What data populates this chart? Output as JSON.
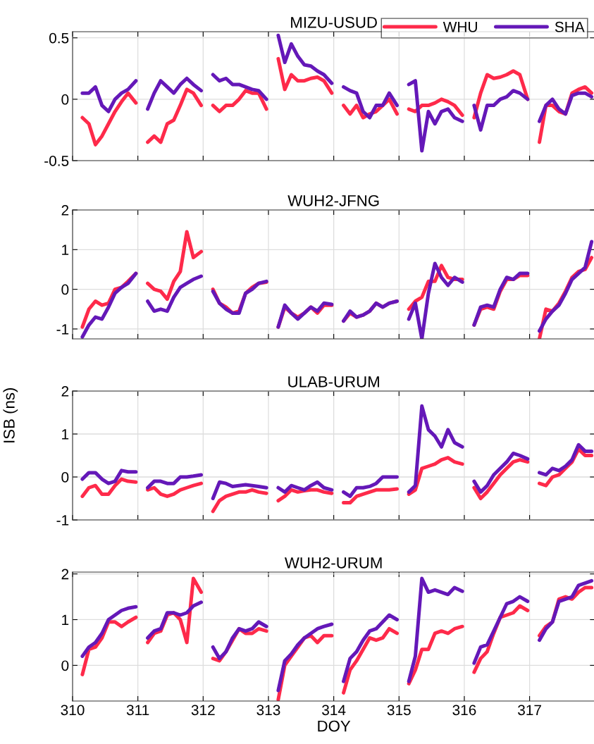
{
  "chart_data": [
    {
      "type": "line",
      "title": "MIZU-USUD",
      "legend": "top right",
      "grid": true,
      "tick_labels": "y",
      "xlim": [
        310,
        318
      ],
      "xticks": [
        310,
        311,
        312,
        313,
        314,
        315,
        316,
        317
      ],
      "ylim": [
        -0.5,
        0.55
      ],
      "yticks": [
        -0.5,
        0,
        0.5
      ],
      "x": [
        310.15,
        310.25,
        310.35,
        310.45,
        310.55,
        310.65,
        310.75,
        310.85,
        310.97,
        311.06,
        311.15,
        311.25,
        311.35,
        311.45,
        311.55,
        311.65,
        311.75,
        311.85,
        311.97,
        312.06,
        312.15,
        312.25,
        312.35,
        312.45,
        312.55,
        312.65,
        312.75,
        312.85,
        312.97,
        313.06,
        313.15,
        313.25,
        313.35,
        313.45,
        313.55,
        313.65,
        313.75,
        313.85,
        313.97,
        314.06,
        314.15,
        314.25,
        314.35,
        314.45,
        314.55,
        314.65,
        314.75,
        314.85,
        314.97,
        315.06,
        315.15,
        315.25,
        315.35,
        315.45,
        315.55,
        315.65,
        315.75,
        315.85,
        315.97,
        316.06,
        316.15,
        316.25,
        316.35,
        316.45,
        316.55,
        316.65,
        316.75,
        316.85,
        316.97,
        317.06,
        317.15,
        317.25,
        317.35,
        317.45,
        317.55,
        317.65,
        317.75,
        317.85,
        317.95
      ],
      "series": [
        {
          "name": "WHU",
          "color": "#fe2a4a",
          "values": [
            -0.15,
            -0.2,
            -0.37,
            -0.3,
            -0.2,
            -0.1,
            -0.02,
            0.05,
            -0.03,
            null,
            -0.35,
            -0.3,
            -0.35,
            -0.2,
            -0.17,
            -0.05,
            0.08,
            0.05,
            -0.05,
            null,
            -0.05,
            -0.1,
            -0.05,
            -0.05,
            0.0,
            0.07,
            0.05,
            0.05,
            -0.08,
            null,
            0.33,
            0.08,
            0.2,
            0.15,
            0.15,
            0.17,
            0.18,
            0.15,
            0.05,
            null,
            -0.05,
            -0.12,
            -0.05,
            -0.15,
            -0.12,
            -0.1,
            -0.05,
            0.0,
            -0.12,
            null,
            -0.08,
            -0.1,
            -0.05,
            -0.05,
            -0.03,
            0.0,
            -0.02,
            -0.05,
            -0.13,
            null,
            -0.15,
            0.05,
            0.2,
            0.17,
            0.18,
            0.2,
            0.23,
            0.2,
            0.0,
            null,
            -0.35,
            -0.05,
            -0.05,
            -0.1,
            -0.12,
            0.05,
            0.08,
            0.1,
            0.05
          ]
        },
        {
          "name": "SHA",
          "color": "#6418b8",
          "values": [
            0.05,
            0.05,
            0.1,
            -0.05,
            -0.1,
            0.0,
            0.05,
            0.08,
            0.15,
            null,
            -0.08,
            0.05,
            0.15,
            0.1,
            0.05,
            0.12,
            0.17,
            0.12,
            0.07,
            null,
            0.2,
            0.15,
            0.17,
            0.12,
            0.12,
            0.1,
            0.08,
            0.07,
            0.0,
            null,
            0.52,
            0.3,
            0.45,
            0.35,
            0.28,
            0.27,
            0.23,
            0.2,
            0.13,
            null,
            0.1,
            0.07,
            0.05,
            -0.1,
            -0.15,
            -0.05,
            -0.05,
            0.05,
            -0.05,
            null,
            0.12,
            0.15,
            -0.42,
            -0.1,
            -0.2,
            -0.1,
            -0.08,
            -0.15,
            -0.18,
            null,
            -0.05,
            -0.25,
            -0.05,
            -0.05,
            0.0,
            0.02,
            0.07,
            0.05,
            0.0,
            null,
            -0.18,
            -0.05,
            0.0,
            -0.08,
            -0.12,
            0.03,
            0.05,
            0.05,
            0.02
          ]
        }
      ]
    },
    {
      "type": "line",
      "title": "WUH2-JFNG",
      "grid": true,
      "tick_labels": "y",
      "xlim": [
        310,
        318
      ],
      "xticks": [
        310,
        311,
        312,
        313,
        314,
        315,
        316,
        317
      ],
      "ylim": [
        -1.25,
        2
      ],
      "yticks": [
        -1,
        0,
        1,
        2
      ],
      "x": [
        310.15,
        310.25,
        310.35,
        310.45,
        310.55,
        310.65,
        310.75,
        310.85,
        310.97,
        311.06,
        311.15,
        311.25,
        311.35,
        311.45,
        311.55,
        311.65,
        311.75,
        311.85,
        311.97,
        312.06,
        312.15,
        312.25,
        312.35,
        312.45,
        312.55,
        312.65,
        312.75,
        312.85,
        312.97,
        313.06,
        313.15,
        313.25,
        313.35,
        313.45,
        313.55,
        313.65,
        313.75,
        313.85,
        313.97,
        314.06,
        314.15,
        314.25,
        314.35,
        314.45,
        314.55,
        314.65,
        314.75,
        314.85,
        314.97,
        315.06,
        315.15,
        315.25,
        315.35,
        315.45,
        315.55,
        315.65,
        315.75,
        315.85,
        315.97,
        316.06,
        316.15,
        316.25,
        316.35,
        316.45,
        316.55,
        316.65,
        316.75,
        316.85,
        316.97,
        317.06,
        317.15,
        317.25,
        317.35,
        317.45,
        317.55,
        317.65,
        317.75,
        317.85,
        317.95
      ],
      "series": [
        {
          "color": "#fe2a4a",
          "values": [
            -0.95,
            -0.5,
            -0.3,
            -0.4,
            -0.35,
            0.0,
            0.05,
            0.2,
            0.4,
            null,
            0.15,
            0.0,
            -0.05,
            -0.25,
            0.2,
            0.45,
            1.45,
            0.8,
            0.95,
            null,
            0.0,
            -0.35,
            -0.45,
            -0.6,
            -0.55,
            -0.1,
            0.05,
            0.15,
            0.18,
            null,
            -0.95,
            -0.45,
            -0.6,
            -0.7,
            -0.6,
            -0.45,
            -0.6,
            -0.4,
            -0.4,
            null,
            -0.8,
            -0.6,
            -0.7,
            -0.65,
            -0.55,
            -0.35,
            -0.45,
            -0.35,
            -0.3,
            null,
            -0.5,
            -0.3,
            -0.2,
            0.2,
            0.2,
            0.6,
            0.3,
            0.25,
            0.25,
            null,
            -0.9,
            -0.5,
            -0.45,
            -0.5,
            -0.05,
            0.25,
            0.25,
            0.35,
            0.35,
            null,
            -1.25,
            -0.5,
            -0.55,
            -0.35,
            -0.05,
            0.3,
            0.45,
            0.5,
            0.8
          ]
        },
        {
          "color": "#6418b8",
          "values": [
            -1.2,
            -0.9,
            -0.7,
            -0.75,
            -0.45,
            -0.1,
            0.05,
            0.15,
            0.4,
            null,
            -0.3,
            -0.55,
            -0.5,
            -0.55,
            -0.2,
            0.05,
            0.15,
            0.25,
            0.33,
            null,
            -0.05,
            -0.35,
            -0.5,
            -0.6,
            -0.6,
            -0.1,
            0.0,
            0.15,
            0.2,
            null,
            -0.95,
            -0.4,
            -0.6,
            -0.75,
            -0.6,
            -0.45,
            -0.55,
            -0.35,
            -0.38,
            null,
            -0.8,
            -0.55,
            -0.7,
            -0.65,
            -0.55,
            -0.35,
            -0.45,
            -0.35,
            -0.3,
            null,
            -0.75,
            -0.35,
            -1.25,
            -0.1,
            0.65,
            0.3,
            0.1,
            0.3,
            0.18,
            null,
            -0.9,
            -0.45,
            -0.4,
            -0.45,
            0.0,
            0.3,
            0.25,
            0.4,
            0.4,
            null,
            -1.05,
            -0.75,
            -0.55,
            -0.4,
            -0.1,
            0.25,
            0.4,
            0.55,
            1.2
          ]
        }
      ]
    },
    {
      "type": "line",
      "title": "ULAB-URUM",
      "ylabel": "ISB (ns)",
      "grid": true,
      "tick_labels": "y",
      "xlim": [
        310,
        318
      ],
      "xticks": [
        310,
        311,
        312,
        313,
        314,
        315,
        316,
        317
      ],
      "ylim": [
        -1,
        2
      ],
      "yticks": [
        -1,
        0,
        1,
        2
      ],
      "x": [
        310.15,
        310.25,
        310.35,
        310.45,
        310.55,
        310.65,
        310.75,
        310.85,
        310.97,
        311.06,
        311.15,
        311.25,
        311.35,
        311.45,
        311.55,
        311.65,
        311.75,
        311.85,
        311.97,
        312.06,
        312.15,
        312.25,
        312.35,
        312.45,
        312.55,
        312.65,
        312.75,
        312.85,
        312.97,
        313.06,
        313.15,
        313.25,
        313.35,
        313.45,
        313.55,
        313.65,
        313.75,
        313.85,
        313.97,
        314.06,
        314.15,
        314.25,
        314.35,
        314.45,
        314.55,
        314.65,
        314.75,
        314.85,
        314.97,
        315.06,
        315.15,
        315.25,
        315.35,
        315.45,
        315.55,
        315.65,
        315.75,
        315.85,
        315.97,
        316.06,
        316.15,
        316.25,
        316.35,
        316.45,
        316.55,
        316.65,
        316.75,
        316.85,
        316.97,
        317.06,
        317.15,
        317.25,
        317.35,
        317.45,
        317.55,
        317.65,
        317.75,
        317.85,
        317.95
      ],
      "series": [
        {
          "color": "#fe2a4a",
          "values": [
            -0.45,
            -0.25,
            -0.2,
            -0.4,
            -0.4,
            -0.2,
            -0.05,
            -0.1,
            -0.12,
            null,
            -0.3,
            -0.25,
            -0.4,
            -0.45,
            -0.4,
            -0.3,
            -0.25,
            -0.2,
            -0.15,
            null,
            -0.8,
            -0.55,
            -0.45,
            -0.4,
            -0.35,
            -0.35,
            -0.3,
            -0.35,
            -0.38,
            null,
            -0.55,
            -0.45,
            -0.3,
            -0.35,
            -0.32,
            -0.3,
            -0.3,
            -0.35,
            -0.38,
            null,
            -0.6,
            -0.6,
            -0.45,
            -0.4,
            -0.35,
            -0.3,
            -0.3,
            -0.3,
            -0.28,
            null,
            -0.4,
            -0.3,
            0.2,
            0.25,
            0.3,
            0.4,
            0.45,
            0.35,
            0.3,
            null,
            -0.25,
            -0.5,
            -0.35,
            -0.15,
            0.05,
            0.2,
            0.35,
            0.4,
            0.35,
            null,
            -0.15,
            -0.2,
            0.0,
            0.05,
            0.2,
            0.35,
            0.65,
            0.5,
            0.5
          ]
        },
        {
          "color": "#6418b8",
          "values": [
            -0.05,
            0.1,
            0.1,
            -0.05,
            -0.15,
            -0.1,
            0.15,
            0.12,
            0.12,
            null,
            -0.25,
            -0.1,
            -0.1,
            -0.15,
            -0.15,
            0.0,
            0.0,
            0.02,
            0.05,
            null,
            -0.5,
            -0.12,
            -0.15,
            -0.22,
            -0.2,
            -0.18,
            -0.2,
            -0.22,
            -0.25,
            null,
            -0.25,
            -0.35,
            -0.2,
            -0.25,
            -0.3,
            -0.2,
            -0.12,
            -0.25,
            -0.3,
            null,
            -0.35,
            -0.45,
            -0.25,
            -0.25,
            -0.22,
            -0.15,
            0.0,
            0.0,
            0.0,
            null,
            -0.35,
            -0.2,
            1.65,
            1.1,
            0.95,
            0.7,
            1.1,
            0.8,
            0.7,
            null,
            -0.1,
            -0.35,
            -0.2,
            0.05,
            0.2,
            0.35,
            0.55,
            0.5,
            0.42,
            null,
            0.1,
            0.05,
            0.2,
            0.15,
            0.25,
            0.4,
            0.75,
            0.6,
            0.6
          ]
        }
      ]
    },
    {
      "type": "line",
      "title": "WUH2-URUM",
      "xlabel": "DOY",
      "grid": true,
      "xlim": [
        310,
        318
      ],
      "xticks": [
        310,
        311,
        312,
        313,
        314,
        315,
        316,
        317
      ],
      "ylim": [
        -0.78,
        2.04
      ],
      "yticks": [
        0,
        1,
        2
      ],
      "x": [
        310.15,
        310.25,
        310.35,
        310.45,
        310.55,
        310.65,
        310.75,
        310.85,
        310.97,
        311.06,
        311.15,
        311.25,
        311.35,
        311.45,
        311.55,
        311.65,
        311.75,
        311.85,
        311.97,
        312.06,
        312.15,
        312.25,
        312.35,
        312.45,
        312.55,
        312.65,
        312.75,
        312.85,
        312.97,
        313.06,
        313.15,
        313.25,
        313.35,
        313.45,
        313.55,
        313.65,
        313.75,
        313.85,
        313.97,
        314.06,
        314.15,
        314.25,
        314.35,
        314.45,
        314.55,
        314.65,
        314.75,
        314.85,
        314.97,
        315.06,
        315.15,
        315.25,
        315.35,
        315.45,
        315.55,
        315.65,
        315.75,
        315.85,
        315.97,
        316.06,
        316.15,
        316.25,
        316.35,
        316.45,
        316.55,
        316.65,
        316.75,
        316.85,
        316.97,
        317.06,
        317.15,
        317.25,
        317.35,
        317.45,
        317.55,
        317.65,
        317.75,
        317.85,
        317.95
      ],
      "series": [
        {
          "color": "#fe2a4a",
          "values": [
            -0.2,
            0.35,
            0.4,
            0.6,
            0.95,
            0.95,
            0.85,
            0.95,
            1.05,
            null,
            0.5,
            0.7,
            0.75,
            1.1,
            1.15,
            1.0,
            0.5,
            1.9,
            1.6,
            null,
            0.15,
            0.1,
            0.3,
            0.55,
            0.8,
            0.7,
            0.7,
            0.8,
            0.75,
            null,
            -0.75,
            0.0,
            0.2,
            0.4,
            0.6,
            0.65,
            0.5,
            0.65,
            0.65,
            null,
            -0.6,
            -0.1,
            0.1,
            0.35,
            0.6,
            0.55,
            0.6,
            0.8,
            0.7,
            null,
            -0.4,
            -0.1,
            0.35,
            0.35,
            0.7,
            0.75,
            0.7,
            0.8,
            0.85,
            null,
            -0.15,
            0.15,
            0.3,
            0.7,
            1.05,
            1.1,
            1.15,
            1.3,
            1.2,
            null,
            0.65,
            0.85,
            0.95,
            1.45,
            1.5,
            1.45,
            1.6,
            1.7,
            1.7
          ]
        },
        {
          "color": "#6418b8",
          "values": [
            0.2,
            0.4,
            0.5,
            0.7,
            1.0,
            1.1,
            1.2,
            1.25,
            1.28,
            null,
            0.6,
            0.75,
            0.8,
            1.15,
            1.15,
            1.1,
            1.15,
            1.3,
            1.38,
            null,
            0.4,
            0.15,
            0.3,
            0.6,
            0.8,
            0.75,
            0.8,
            0.95,
            0.85,
            null,
            -0.55,
            0.1,
            0.25,
            0.45,
            0.6,
            0.7,
            0.8,
            0.85,
            0.9,
            null,
            -0.35,
            0.15,
            0.3,
            0.55,
            0.75,
            0.8,
            0.95,
            1.1,
            1.0,
            null,
            -0.35,
            0.2,
            1.9,
            1.6,
            1.65,
            1.6,
            1.55,
            1.7,
            1.62,
            null,
            0.05,
            0.4,
            0.45,
            0.75,
            1.05,
            1.35,
            1.4,
            1.5,
            1.4,
            null,
            0.55,
            0.8,
            0.95,
            1.4,
            1.45,
            1.5,
            1.75,
            1.8,
            1.85
          ]
        }
      ]
    }
  ]
}
